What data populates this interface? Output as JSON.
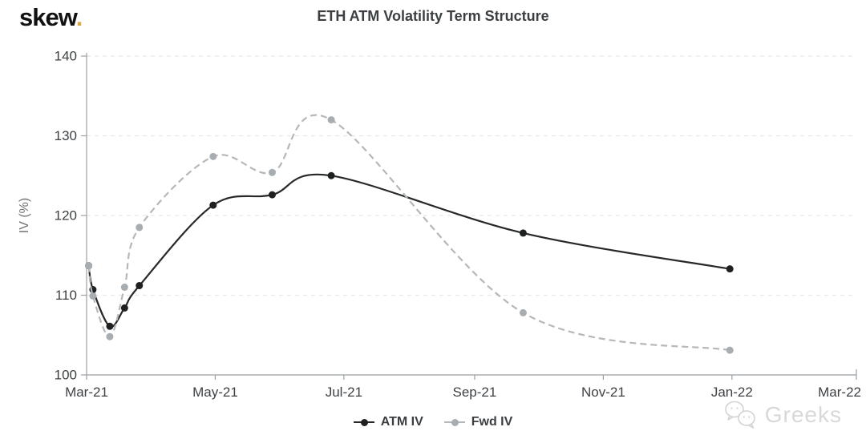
{
  "brand": {
    "name": "skew",
    "dot": "."
  },
  "watermark": {
    "text": "Greeks"
  },
  "colors": {
    "brand_dot": "#dfa743",
    "title": "#3c3f42",
    "axis": "#9b9fa3",
    "grid": "#e8e8e8",
    "tick_label": "#3e4144",
    "ylabel": "#6e7276",
    "watermark": "#d8d8d8"
  },
  "chart_data": {
    "type": "line",
    "title": "ETH ATM Volatility Term Structure",
    "xlabel": "",
    "ylabel": "IV (%)",
    "ylim": [
      100,
      140
    ],
    "xlim_days": [
      0,
      365
    ],
    "grid": "horizontal-dashed",
    "legend_position": "bottom-center",
    "y_ticks": [
      100,
      110,
      120,
      130,
      140
    ],
    "x_ticks": [
      {
        "label": "Mar-21",
        "day": 0
      },
      {
        "label": "May-21",
        "day": 61
      },
      {
        "label": "Jul-21",
        "day": 122
      },
      {
        "label": "Sep-21",
        "day": 184
      },
      {
        "label": "Nov-21",
        "day": 245
      },
      {
        "label": "Jan-22",
        "day": 306
      },
      {
        "label": "Mar-22",
        "day": 365
      }
    ],
    "x_days": [
      1,
      3,
      11,
      18,
      25,
      60,
      88,
      116,
      207,
      305
    ],
    "series": [
      {
        "name": "ATM IV",
        "style": "solid",
        "color": "#26282a",
        "marker_color": "#1e2022",
        "values": [
          113.7,
          110.7,
          106.1,
          108.4,
          111.2,
          121.3,
          122.6,
          125.0,
          117.8,
          113.3
        ]
      },
      {
        "name": "Fwd IV",
        "style": "dashed",
        "color": "#b4b8bb",
        "marker_color": "#a8adb1",
        "values": [
          113.7,
          109.9,
          104.8,
          111.0,
          118.5,
          127.4,
          125.4,
          132.0,
          107.8,
          103.1
        ]
      }
    ]
  }
}
